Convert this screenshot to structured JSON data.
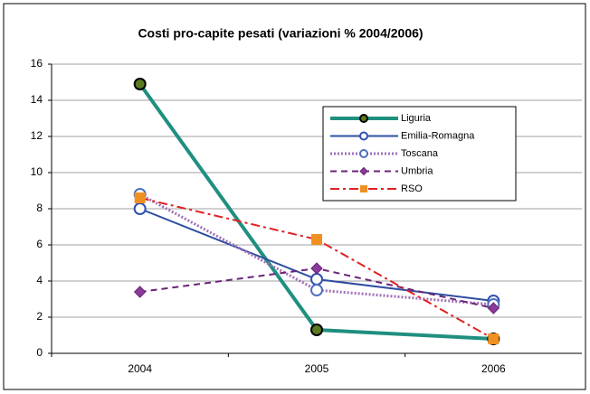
{
  "chart_data": {
    "type": "line",
    "title": "Costi pro-capite pesati (variazioni % 2004/2006)",
    "categories": [
      "2004",
      "2005",
      "2006"
    ],
    "series": [
      {
        "name": "Liguria",
        "color": "#1f8f80",
        "values": [
          14.9,
          1.3,
          0.8
        ]
      },
      {
        "name": "Emilia-Romagna",
        "color": "#2e4ea0",
        "values": [
          8.0,
          4.1,
          2.9
        ]
      },
      {
        "name": "Toscana",
        "color": "#a070b8",
        "values": [
          8.8,
          3.5,
          2.7
        ]
      },
      {
        "name": "Umbria",
        "color": "#6a2478",
        "values": [
          3.4,
          4.7,
          2.5
        ]
      },
      {
        "name": "RSO",
        "color": "#e02020",
        "values": [
          8.6,
          6.3,
          0.8
        ]
      }
    ],
    "ylim": [
      0,
      16
    ],
    "yticks": [
      0,
      2,
      4,
      6,
      8,
      10,
      12,
      14,
      16
    ],
    "grid": true
  }
}
